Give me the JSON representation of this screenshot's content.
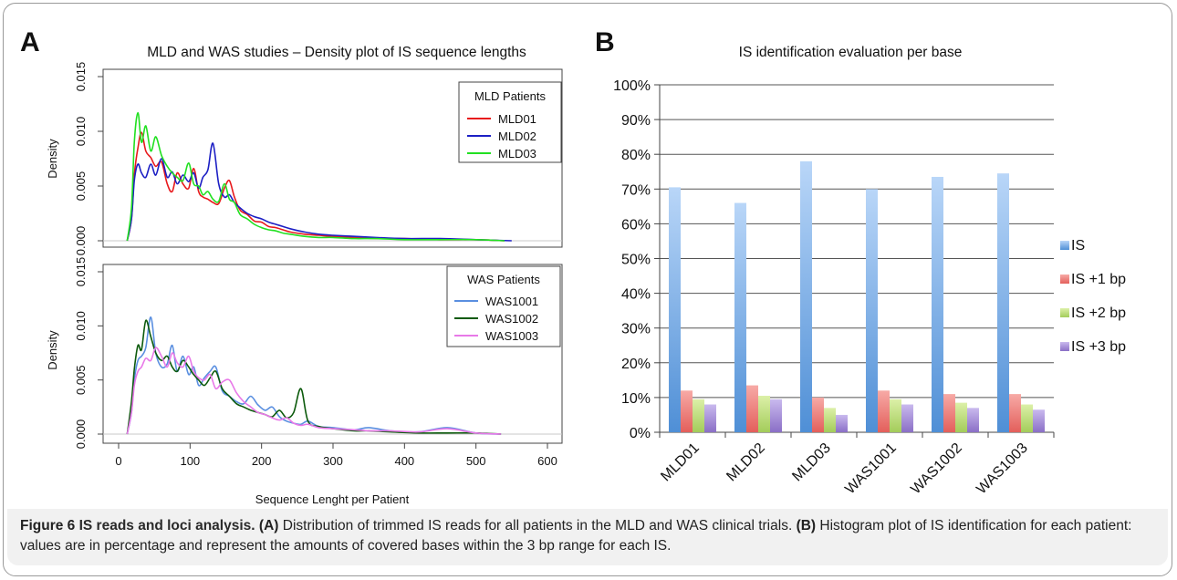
{
  "panel_a_letter": "A",
  "panel_b_letter": "B",
  "caption": {
    "label": "Figure 6",
    "title": "IS reads and loci analysis.",
    "part_a_tag": "(A)",
    "part_a_text": "Distribution of trimmed IS reads for all patients in the MLD and WAS clinical trials.",
    "part_b_tag": "(B)",
    "part_b_text": "Histogram plot of IS identification for each patient: values are in percentage and represent the amounts of covered bases within the 3 bp range for each IS."
  },
  "chart_data": [
    {
      "type": "line",
      "title": "MLD and WAS studies – Density plot of IS sequence lengths",
      "xlabel": "",
      "ylabel": "Density",
      "xlim": [
        0,
        600
      ],
      "ylim": [
        0,
        0.015
      ],
      "x_ticks": [
        0,
        100,
        200,
        300,
        400,
        500,
        600
      ],
      "y_ticks": [
        "0.000",
        "0.005",
        "0.010",
        "0.015"
      ],
      "legend_title": "MLD Patients",
      "legend_position": "top-right",
      "series": [
        {
          "name": "MLD01",
          "color": "#e8191c",
          "x": [
            12,
            18,
            22,
            27,
            32,
            38,
            45,
            52,
            60,
            68,
            75,
            82,
            90,
            98,
            105,
            112,
            118,
            125,
            132,
            140,
            148,
            155,
            162,
            170,
            180,
            190,
            200,
            210,
            220,
            230,
            240,
            260,
            280,
            300,
            330,
            360,
            400,
            450,
            500,
            540
          ],
          "y": [
            0,
            0.002,
            0.006,
            0.0085,
            0.0099,
            0.0082,
            0.0076,
            0.0068,
            0.0072,
            0.0052,
            0.0045,
            0.0062,
            0.0052,
            0.0048,
            0.0066,
            0.0045,
            0.004,
            0.0038,
            0.0035,
            0.0034,
            0.0048,
            0.0055,
            0.004,
            0.0028,
            0.0024,
            0.0018,
            0.0017,
            0.0013,
            0.0012,
            0.001,
            0.0008,
            0.0006,
            0.0005,
            0.0004,
            0.0003,
            0.0002,
            0.0002,
            0.0001,
            0.0001,
            0
          ]
        },
        {
          "name": "MLD02",
          "color": "#1c1fc4",
          "x": [
            12,
            18,
            22,
            27,
            32,
            38,
            45,
            52,
            60,
            68,
            75,
            82,
            90,
            98,
            105,
            112,
            118,
            125,
            132,
            140,
            148,
            155,
            162,
            170,
            180,
            190,
            200,
            210,
            220,
            230,
            240,
            260,
            280,
            300,
            330,
            360,
            400,
            450,
            500,
            550
          ],
          "y": [
            0,
            0.002,
            0.0055,
            0.007,
            0.0062,
            0.0058,
            0.007,
            0.006,
            0.0075,
            0.0058,
            0.0063,
            0.0052,
            0.006,
            0.0054,
            0.0062,
            0.0048,
            0.0058,
            0.0065,
            0.0089,
            0.0052,
            0.004,
            0.0042,
            0.0035,
            0.003,
            0.0025,
            0.0022,
            0.002,
            0.0017,
            0.0015,
            0.0013,
            0.0011,
            0.0008,
            0.0006,
            0.0005,
            0.0004,
            0.0003,
            0.0002,
            0.0002,
            0.0001,
            0
          ]
        },
        {
          "name": "MLD03",
          "color": "#21e021",
          "x": [
            12,
            18,
            22,
            27,
            32,
            38,
            45,
            52,
            60,
            68,
            75,
            82,
            90,
            98,
            105,
            112,
            118,
            125,
            132,
            140,
            148,
            155,
            162,
            170,
            180,
            190,
            200,
            210,
            220,
            230,
            240,
            260,
            280,
            300,
            330,
            360,
            400,
            450,
            500,
            540
          ],
          "y": [
            0,
            0.003,
            0.009,
            0.0117,
            0.009,
            0.0105,
            0.0082,
            0.0095,
            0.0078,
            0.0068,
            0.0062,
            0.0058,
            0.0055,
            0.0071,
            0.0052,
            0.005,
            0.0042,
            0.0045,
            0.0038,
            0.0036,
            0.0052,
            0.0038,
            0.0035,
            0.0024,
            0.002,
            0.0015,
            0.0012,
            0.001,
            0.0009,
            0.0007,
            0.0006,
            0.0004,
            0.0003,
            0.0003,
            0.0002,
            0.0002,
            0.0001,
            0.0001,
            0.0001,
            0
          ]
        }
      ]
    },
    {
      "type": "line",
      "title": "",
      "xlabel": "Sequence Lenght per Patient",
      "ylabel": "Density",
      "xlim": [
        0,
        600
      ],
      "ylim": [
        0,
        0.015
      ],
      "x_ticks": [
        0,
        100,
        200,
        300,
        400,
        500,
        600
      ],
      "y_ticks": [
        "0.000",
        "0.005",
        "0.010",
        "0.015"
      ],
      "legend_title": "WAS Patients",
      "legend_position": "top-right",
      "series": [
        {
          "name": "WAS1001",
          "color": "#5a8fe0",
          "x": [
            12,
            18,
            22,
            27,
            32,
            38,
            45,
            52,
            60,
            68,
            75,
            82,
            90,
            98,
            105,
            112,
            120,
            128,
            136,
            145,
            155,
            165,
            175,
            185,
            195,
            205,
            215,
            225,
            235,
            245,
            255,
            265,
            280,
            300,
            330,
            350,
            380,
            420,
            460,
            500,
            535
          ],
          "y": [
            0,
            0.002,
            0.005,
            0.0068,
            0.0072,
            0.008,
            0.0108,
            0.0075,
            0.0062,
            0.0065,
            0.0082,
            0.0058,
            0.0072,
            0.0055,
            0.0062,
            0.0045,
            0.0052,
            0.0058,
            0.0062,
            0.004,
            0.0035,
            0.003,
            0.0028,
            0.0035,
            0.0027,
            0.0022,
            0.0025,
            0.0016,
            0.0012,
            0.001,
            0.0009,
            0.0012,
            0.0007,
            0.0006,
            0.0004,
            0.0006,
            0.0003,
            0.0002,
            0.0006,
            0.0001,
            0
          ]
        },
        {
          "name": "WAS1002",
          "color": "#0c5a0c",
          "x": [
            12,
            18,
            22,
            27,
            32,
            38,
            45,
            52,
            60,
            68,
            75,
            82,
            90,
            98,
            105,
            112,
            120,
            128,
            136,
            145,
            155,
            165,
            175,
            185,
            195,
            205,
            215,
            225,
            235,
            245,
            255,
            265,
            280,
            300,
            330,
            350,
            380,
            420,
            460,
            500,
            535
          ],
          "y": [
            0,
            0.003,
            0.006,
            0.0082,
            0.0078,
            0.0105,
            0.009,
            0.0075,
            0.0068,
            0.0072,
            0.0062,
            0.0058,
            0.0068,
            0.0062,
            0.0055,
            0.005,
            0.0045,
            0.0052,
            0.0058,
            0.0042,
            0.0035,
            0.0028,
            0.0025,
            0.0022,
            0.002,
            0.0018,
            0.0016,
            0.0022,
            0.0015,
            0.002,
            0.0042,
            0.0012,
            0.0007,
            0.0005,
            0.0003,
            0.0003,
            0.0002,
            0.0001,
            0.0001,
            0.0001,
            0
          ]
        },
        {
          "name": "WAS1003",
          "color": "#e879e8",
          "x": [
            12,
            18,
            22,
            27,
            32,
            38,
            45,
            52,
            60,
            68,
            75,
            82,
            90,
            98,
            105,
            112,
            120,
            128,
            136,
            145,
            155,
            165,
            175,
            185,
            195,
            205,
            215,
            225,
            235,
            245,
            255,
            265,
            280,
            300,
            330,
            350,
            380,
            420,
            460,
            500,
            535
          ],
          "y": [
            0,
            0.002,
            0.0045,
            0.0058,
            0.0062,
            0.007,
            0.0068,
            0.008,
            0.0072,
            0.0062,
            0.0075,
            0.0066,
            0.0062,
            0.0072,
            0.0058,
            0.0052,
            0.005,
            0.0055,
            0.0042,
            0.0048,
            0.005,
            0.0038,
            0.003,
            0.0025,
            0.002,
            0.0018,
            0.0015,
            0.0013,
            0.0015,
            0.001,
            0.0008,
            0.0009,
            0.0006,
            0.0005,
            0.0004,
            0.0003,
            0.0003,
            0.0002,
            0.0005,
            0.0001,
            0
          ]
        }
      ]
    },
    {
      "type": "bar",
      "title": "IS identification evaluation per base",
      "xlabel": "",
      "ylabel": "",
      "ylim": [
        0,
        100
      ],
      "y_ticks": [
        "0%",
        "10%",
        "20%",
        "30%",
        "40%",
        "50%",
        "60%",
        "70%",
        "80%",
        "90%",
        "100%"
      ],
      "legend_position": "right",
      "categories": [
        "MLD01",
        "MLD02",
        "MLD03",
        "WAS1001",
        "WAS1002",
        "WAS1003"
      ],
      "series": [
        {
          "name": "IS",
          "color": "#7ab0ec",
          "values": [
            70.5,
            66,
            78,
            70,
            73.5,
            74.5
          ]
        },
        {
          "name": "IS +1 bp",
          "color": "#f08484",
          "values": [
            12,
            13.5,
            10,
            12,
            11,
            11
          ]
        },
        {
          "name": "IS +2 bp",
          "color": "#c6e48a",
          "values": [
            9.5,
            10.5,
            7,
            9.5,
            8.5,
            8
          ]
        },
        {
          "name": "IS +3 bp",
          "color": "#a690d6",
          "values": [
            8,
            9.5,
            5,
            8,
            7,
            6.5
          ]
        }
      ]
    }
  ]
}
